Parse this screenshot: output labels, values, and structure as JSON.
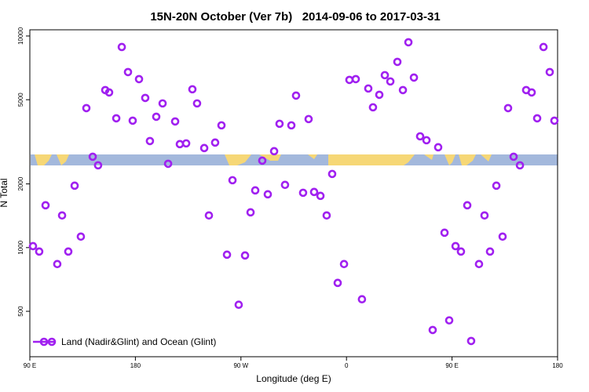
{
  "chart_data": {
    "type": "scatter",
    "title": "15N-20N October (Ver 7b)   2014-09-06 to 2017-03-31",
    "x_label": "Longitude (deg E)",
    "y_label": "N Total",
    "xlim": [
      90,
      540
    ],
    "xticks": [
      {
        "value": 90,
        "label": "90 E"
      },
      180,
      {
        "value": 270,
        "label": "90 W"
      },
      {
        "value": 360,
        "label": "0"
      },
      {
        "value": 450,
        "label": "90 E"
      },
      {
        "value": 540,
        "label": "180"
      }
    ],
    "ylim": [
      305,
      10700
    ],
    "yticks": [
      500,
      1000,
      2000,
      5000,
      10000
    ],
    "ylog": true,
    "legend": "bottom-left",
    "series": [
      {
        "name": "Land (Nadir&Glint) and Ocean (Glint)",
        "color": "#a020f0",
        "x": [
          92.7,
          98.0,
          103.4,
          113.4,
          117.5,
          122.8,
          128.2,
          133.5,
          138.2,
          143.6,
          148.2,
          154.3,
          157.6,
          163.7,
          168.4,
          173.7,
          177.7,
          183.1,
          188.4,
          192.4,
          197.8,
          203.2,
          207.9,
          213.9,
          217.9,
          223.3,
          228.6,
          232.6,
          238.7,
          242.7,
          248.0,
          253.4,
          258.1,
          262.8,
          268.1,
          273.5,
          278.2,
          282.2,
          288.2,
          292.9,
          298.3,
          302.9,
          307.6,
          313.0,
          317.0,
          323.0,
          327.7,
          332.4,
          337.8,
          343.1,
          347.8,
          352.5,
          357.9,
          362.5,
          367.9,
          373.2,
          378.6,
          382.6,
          388.0,
          392.7,
          397.4,
          403.4,
          408.1,
          412.8,
          417.5,
          422.8,
          428.2,
          433.5,
          438.2,
          443.6,
          447.6,
          453.0,
          457.6,
          463.0,
          466.3,
          473.0,
          477.7,
          482.4,
          487.8,
          493.1,
          497.8,
          502.5,
          507.9,
          513.2,
          517.9,
          522.6,
          528.0,
          533.3,
          537.3
        ],
        "values": [
          1016,
          958,
          1585,
          836,
          1419,
          958,
          1962,
          1127,
          4563,
          2689,
          2448,
          5552,
          5412,
          4084,
          8873,
          6755,
          3981,
          6256,
          5098,
          3189,
          4154,
          4803,
          2490,
          3947,
          3083,
          3109,
          5601,
          4803,
          2954,
          1419,
          3136,
          3783,
          926,
          2082,
          537,
          918,
          1468,
          1864,
          2577,
          1786,
          2855,
          3848,
          1979,
          3783,
          5230,
          1816,
          4050,
          1832,
          1756,
          1419,
          2229,
          681,
          836,
          6202,
          6256,
          570,
          5649,
          4603,
          5275,
          6530,
          6099,
          7546,
          5552,
          9342,
          6363,
          3357,
          3217,
          408,
          2980,
          1176,
          453,
          1016,
          958,
          1585,
          362,
          836,
          1419,
          958,
          1962,
          1127,
          4563,
          2689,
          2448,
          5552,
          5412,
          4084,
          8873,
          6755,
          3981
        ]
      }
    ]
  }
}
